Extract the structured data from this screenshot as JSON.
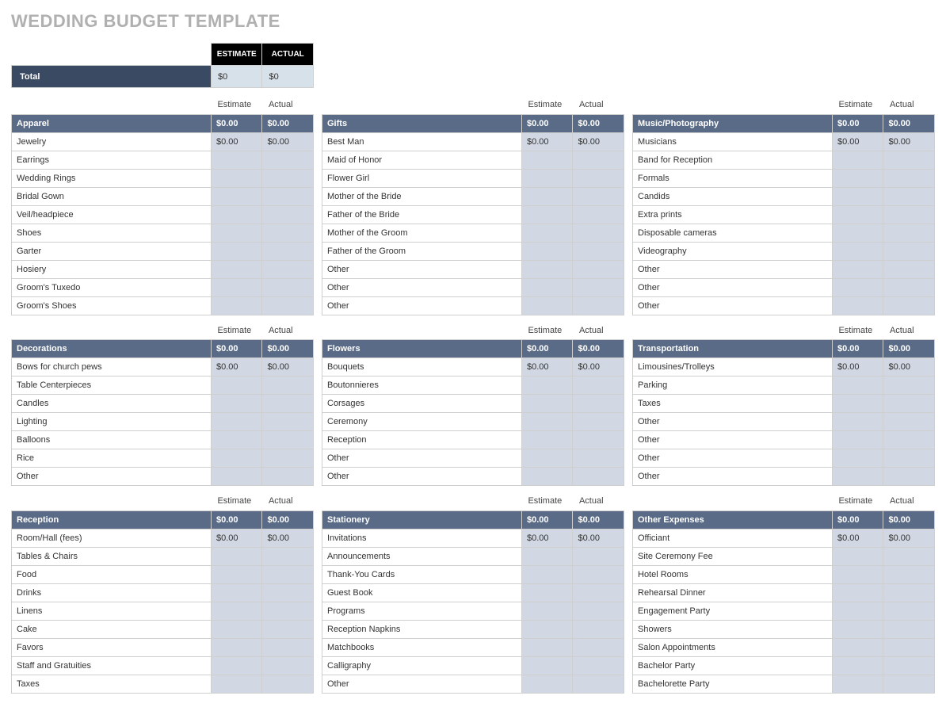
{
  "title": "WEDDING BUDGET TEMPLATE",
  "column_labels": {
    "estimate_upper": "ESTIMATE",
    "actual_upper": "ACTUAL",
    "estimate": "Estimate",
    "actual": "Actual"
  },
  "totals": {
    "label": "Total",
    "estimate": "$0",
    "actual": "$0"
  },
  "colors": {
    "page_bg": "#ffffff",
    "title_color": "#b0b0b0",
    "black_header_bg": "#000000",
    "total_row_bg": "#3b4a63",
    "total_val_bg": "#d6e1ea",
    "category_header_bg": "#5a6b87",
    "value_cell_bg": "#d1d8e4",
    "border": "#cfcfcf",
    "text": "#333333"
  },
  "columns": [
    [
      {
        "name": "Apparel",
        "estimate": "$0.00",
        "actual": "$0.00",
        "items": [
          {
            "name": "Jewelry",
            "estimate": "$0.00",
            "actual": "$0.00"
          },
          {
            "name": "Earrings",
            "estimate": "",
            "actual": ""
          },
          {
            "name": "Wedding Rings",
            "estimate": "",
            "actual": ""
          },
          {
            "name": "Bridal Gown",
            "estimate": "",
            "actual": ""
          },
          {
            "name": "Veil/headpiece",
            "estimate": "",
            "actual": ""
          },
          {
            "name": "Shoes",
            "estimate": "",
            "actual": ""
          },
          {
            "name": "Garter",
            "estimate": "",
            "actual": ""
          },
          {
            "name": "Hosiery",
            "estimate": "",
            "actual": ""
          },
          {
            "name": "Groom's Tuxedo",
            "estimate": "",
            "actual": ""
          },
          {
            "name": "Groom's Shoes",
            "estimate": "",
            "actual": ""
          }
        ]
      },
      {
        "name": "Decorations",
        "estimate": "$0.00",
        "actual": "$0.00",
        "items": [
          {
            "name": "Bows for church pews",
            "estimate": "$0.00",
            "actual": "$0.00"
          },
          {
            "name": "Table Centerpieces",
            "estimate": "",
            "actual": ""
          },
          {
            "name": "Candles",
            "estimate": "",
            "actual": ""
          },
          {
            "name": "Lighting",
            "estimate": "",
            "actual": ""
          },
          {
            "name": "Balloons",
            "estimate": "",
            "actual": ""
          },
          {
            "name": "Rice",
            "estimate": "",
            "actual": ""
          },
          {
            "name": "Other",
            "estimate": "",
            "actual": ""
          }
        ]
      },
      {
        "name": "Reception",
        "estimate": "$0.00",
        "actual": "$0.00",
        "items": [
          {
            "name": "Room/Hall (fees)",
            "estimate": "$0.00",
            "actual": "$0.00"
          },
          {
            "name": "Tables & Chairs",
            "estimate": "",
            "actual": ""
          },
          {
            "name": "Food",
            "estimate": "",
            "actual": ""
          },
          {
            "name": "Drinks",
            "estimate": "",
            "actual": ""
          },
          {
            "name": "Linens",
            "estimate": "",
            "actual": ""
          },
          {
            "name": "Cake",
            "estimate": "",
            "actual": ""
          },
          {
            "name": "Favors",
            "estimate": "",
            "actual": ""
          },
          {
            "name": "Staff and Gratuities",
            "estimate": "",
            "actual": ""
          },
          {
            "name": "Taxes",
            "estimate": "",
            "actual": ""
          }
        ]
      }
    ],
    [
      {
        "name": "Gifts",
        "estimate": "$0.00",
        "actual": "$0.00",
        "items": [
          {
            "name": "Best Man",
            "estimate": "$0.00",
            "actual": "$0.00"
          },
          {
            "name": "Maid of Honor",
            "estimate": "",
            "actual": ""
          },
          {
            "name": "Flower Girl",
            "estimate": "",
            "actual": ""
          },
          {
            "name": "Mother of the Bride",
            "estimate": "",
            "actual": ""
          },
          {
            "name": "Father of the Bride",
            "estimate": "",
            "actual": ""
          },
          {
            "name": "Mother of the Groom",
            "estimate": "",
            "actual": ""
          },
          {
            "name": "Father of the Groom",
            "estimate": "",
            "actual": ""
          },
          {
            "name": "Other",
            "estimate": "",
            "actual": ""
          },
          {
            "name": "Other",
            "estimate": "",
            "actual": ""
          },
          {
            "name": "Other",
            "estimate": "",
            "actual": ""
          }
        ]
      },
      {
        "name": "Flowers",
        "estimate": "$0.00",
        "actual": "$0.00",
        "items": [
          {
            "name": "Bouquets",
            "estimate": "$0.00",
            "actual": "$0.00"
          },
          {
            "name": "Boutonnieres",
            "estimate": "",
            "actual": ""
          },
          {
            "name": "Corsages",
            "estimate": "",
            "actual": ""
          },
          {
            "name": "Ceremony",
            "estimate": "",
            "actual": ""
          },
          {
            "name": "Reception",
            "estimate": "",
            "actual": ""
          },
          {
            "name": "Other",
            "estimate": "",
            "actual": ""
          },
          {
            "name": "Other",
            "estimate": "",
            "actual": ""
          }
        ]
      },
      {
        "name": "Stationery",
        "estimate": "$0.00",
        "actual": "$0.00",
        "items": [
          {
            "name": "Invitations",
            "estimate": "$0.00",
            "actual": "$0.00"
          },
          {
            "name": "Announcements",
            "estimate": "",
            "actual": ""
          },
          {
            "name": "Thank-You Cards",
            "estimate": "",
            "actual": ""
          },
          {
            "name": "Guest Book",
            "estimate": "",
            "actual": ""
          },
          {
            "name": "Programs",
            "estimate": "",
            "actual": ""
          },
          {
            "name": "Reception Napkins",
            "estimate": "",
            "actual": ""
          },
          {
            "name": "Matchbooks",
            "estimate": "",
            "actual": ""
          },
          {
            "name": "Calligraphy",
            "estimate": "",
            "actual": ""
          },
          {
            "name": "Other",
            "estimate": "",
            "actual": ""
          }
        ]
      }
    ],
    [
      {
        "name": "Music/Photography",
        "estimate": "$0.00",
        "actual": "$0.00",
        "items": [
          {
            "name": "Musicians",
            "estimate": "$0.00",
            "actual": "$0.00"
          },
          {
            "name": "Band for Reception",
            "estimate": "",
            "actual": ""
          },
          {
            "name": "Formals",
            "estimate": "",
            "actual": ""
          },
          {
            "name": "Candids",
            "estimate": "",
            "actual": ""
          },
          {
            "name": "Extra prints",
            "estimate": "",
            "actual": ""
          },
          {
            "name": "Disposable cameras",
            "estimate": "",
            "actual": ""
          },
          {
            "name": "Videography",
            "estimate": "",
            "actual": ""
          },
          {
            "name": "Other",
            "estimate": "",
            "actual": ""
          },
          {
            "name": "Other",
            "estimate": "",
            "actual": ""
          },
          {
            "name": "Other",
            "estimate": "",
            "actual": ""
          }
        ]
      },
      {
        "name": "Transportation",
        "estimate": "$0.00",
        "actual": "$0.00",
        "items": [
          {
            "name": "Limousines/Trolleys",
            "estimate": "$0.00",
            "actual": "$0.00"
          },
          {
            "name": "Parking",
            "estimate": "",
            "actual": ""
          },
          {
            "name": "Taxes",
            "estimate": "",
            "actual": ""
          },
          {
            "name": "Other",
            "estimate": "",
            "actual": ""
          },
          {
            "name": "Other",
            "estimate": "",
            "actual": ""
          },
          {
            "name": "Other",
            "estimate": "",
            "actual": ""
          },
          {
            "name": "Other",
            "estimate": "",
            "actual": ""
          }
        ]
      },
      {
        "name": "Other Expenses",
        "estimate": "$0.00",
        "actual": "$0.00",
        "items": [
          {
            "name": "Officiant",
            "estimate": "$0.00",
            "actual": "$0.00"
          },
          {
            "name": "Site Ceremony Fee",
            "estimate": "",
            "actual": ""
          },
          {
            "name": "Hotel Rooms",
            "estimate": "",
            "actual": ""
          },
          {
            "name": "Rehearsal Dinner",
            "estimate": "",
            "actual": ""
          },
          {
            "name": "Engagement Party",
            "estimate": "",
            "actual": ""
          },
          {
            "name": "Showers",
            "estimate": "",
            "actual": ""
          },
          {
            "name": "Salon Appointments",
            "estimate": "",
            "actual": ""
          },
          {
            "name": "Bachelor Party",
            "estimate": "",
            "actual": ""
          },
          {
            "name": "Bachelorette Party",
            "estimate": "",
            "actual": ""
          }
        ]
      }
    ]
  ]
}
